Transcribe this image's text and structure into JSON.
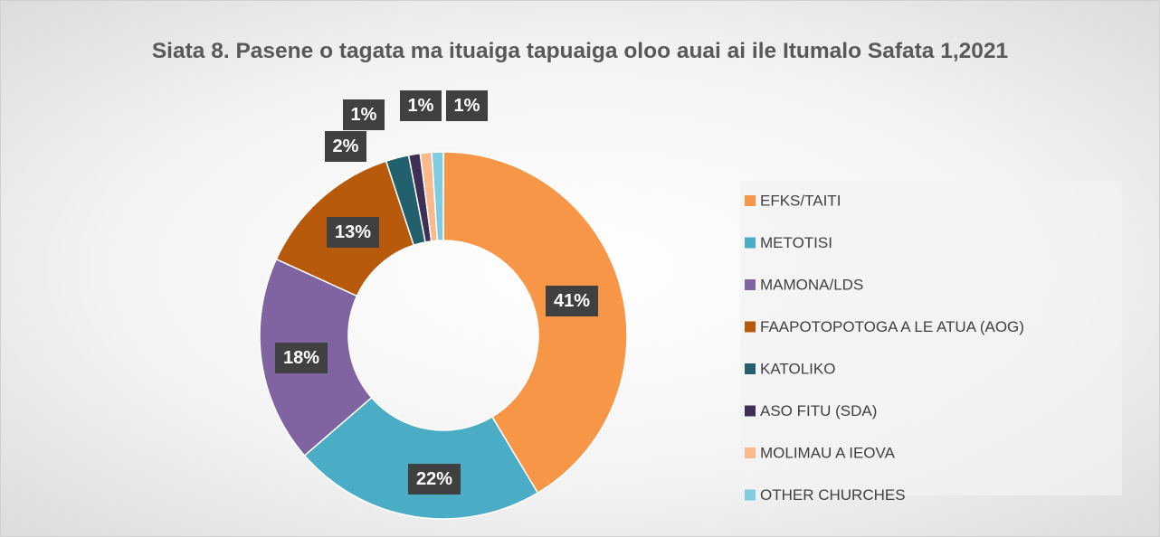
{
  "chart_data": {
    "type": "donut",
    "title": "Siata 8. Pasene o tagata ma ituaiga tapuaiga oloo auai ai ile Itumalo Safata 1,2021",
    "categories": [
      "EFKS/TAITI",
      "METOTISI",
      "MAMONA/LDS",
      "FAAPOTOPOTOGA A LE ATUA (AOG)",
      "KATOLIKO",
      "ASO FITU (SDA)",
      "MOLIMAU A IEOVA",
      "OTHER CHURCHES"
    ],
    "values": [
      41,
      22,
      18,
      13,
      2,
      1,
      1,
      1
    ],
    "value_labels": [
      "41%",
      "22%",
      "18%",
      "13%",
      "2%",
      "1%",
      "1%",
      "1%"
    ],
    "colors": [
      "#f79646",
      "#4bacc6",
      "#8064a2",
      "#b85a0c",
      "#22606e",
      "#3e2f55",
      "#f9b98a",
      "#7fcbe0"
    ],
    "legend": "right"
  }
}
